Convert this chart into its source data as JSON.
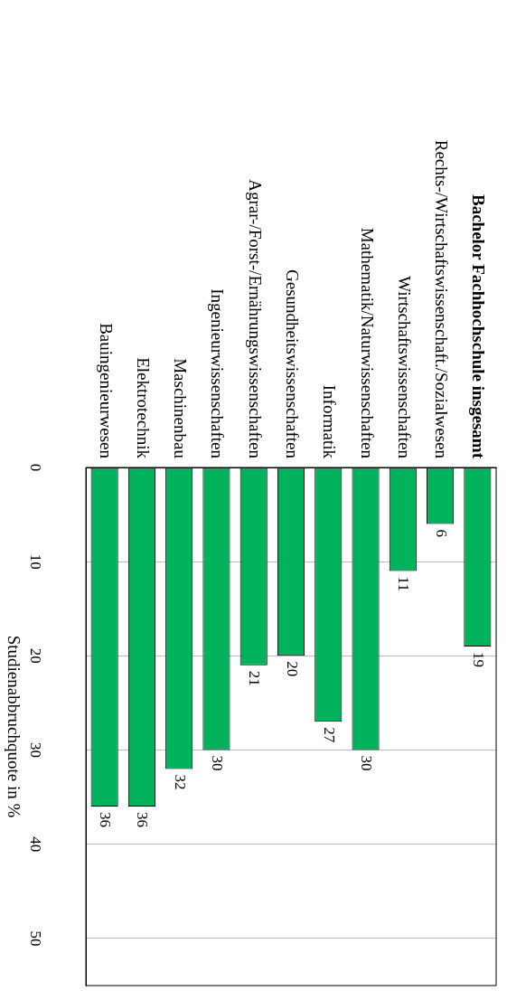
{
  "chart_data": {
    "type": "bar",
    "ylabel": "Studienabbruchquote in %",
    "categories": [
      "Bauingenieurwesen",
      "Elektrotechnik",
      "Maschinenbau",
      "Ingenieurwissenschaften",
      "Agrar-/Forst-/Ernährungswissenschaften",
      "Gesundheitswissenschaften",
      "Informatik",
      "Mathematik/Naturwissenschaften",
      "Wirtschaftswissenschaften",
      "Rechts-/Wirtschaftswissenschaft./Sozialwesen",
      "Bachelor Fachhochschule insgesamt"
    ],
    "values": [
      36,
      36,
      32,
      30,
      21,
      20,
      27,
      30,
      11,
      6,
      19
    ],
    "color": "#00b25c",
    "ylim": [
      55,
      0
    ],
    "yticks": [
      0,
      10,
      20,
      30,
      40,
      50
    ],
    "grid": "y",
    "data_labels": true
  }
}
